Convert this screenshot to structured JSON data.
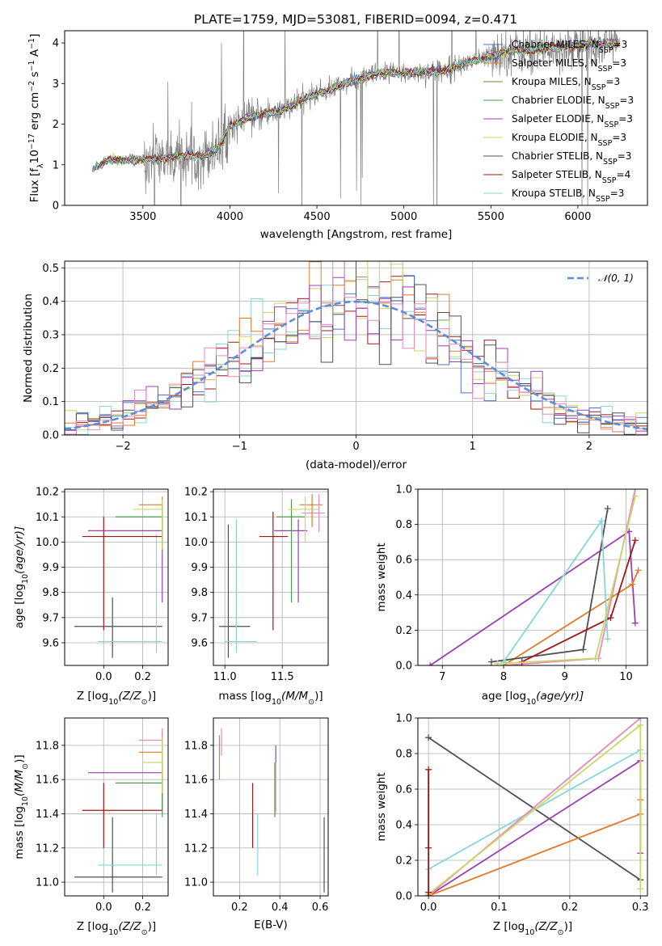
{
  "figure_title": "PLATE=1759, MJD=53081, FIBERID=0094, z=0.471",
  "colors": {
    "chabrier_miles": "#4c72d0",
    "salpeter_miles": "#e07b2e",
    "kroupa_miles": "#9a7a24",
    "chabrier_elodie": "#4f9a4f",
    "salpeter_elodie": "#9c3fb5",
    "kroupa_elodie": "#c9d66a",
    "chabrier_stelib": "#505050",
    "salpeter_stelib": "#a01818",
    "kroupa_stelib": "#86d6d9",
    "pink": "#e58ab8",
    "lime": "#b7d94f",
    "gauss": "#5b8ed6",
    "grid": "#b0b0b0",
    "data_gray": "#808080"
  },
  "chart_data": [
    {
      "id": "spectrum",
      "type": "line",
      "title": "PLATE=1759, MJD=53081, FIBERID=0094, z=0.471",
      "xlabel": "wavelength [Angstrom, rest frame]",
      "ylabel_parts": [
        "Flux [f",
        "λ",
        "10",
        "−17",
        " erg cm",
        "−2",
        " s",
        "−1",
        " A",
        "−1",
        "]"
      ],
      "xlim": [
        3050,
        6400
      ],
      "ylim": [
        0,
        4.3
      ],
      "xticks": [
        3500,
        4000,
        4500,
        5000,
        5500,
        6000
      ],
      "yticks": [
        0,
        1,
        2,
        3,
        4
      ],
      "grid": false,
      "legend_position": "right",
      "legend": [
        {
          "label": "Chabrier MILES, N",
          "sub": "SSP",
          "tail": "=3",
          "key": "chabrier_miles"
        },
        {
          "label": "Salpeter MILES, N",
          "sub": "SSP",
          "tail": "=3",
          "key": "salpeter_miles"
        },
        {
          "label": "Kroupa MILES, N",
          "sub": "SSP",
          "tail": "=3",
          "key": "kroupa_miles"
        },
        {
          "label": "Chabrier ELODIE, N",
          "sub": "SSP",
          "tail": "=3",
          "key": "chabrier_elodie"
        },
        {
          "label": "Salpeter ELODIE, N",
          "sub": "SSP",
          "tail": "=3",
          "key": "salpeter_elodie"
        },
        {
          "label": "Kroupa ELODIE, N",
          "sub": "SSP",
          "tail": "=3",
          "key": "kroupa_elodie"
        },
        {
          "label": "Chabrier STELIB, N",
          "sub": "SSP",
          "tail": "=3",
          "key": "chabrier_stelib"
        },
        {
          "label": "Salpeter STELIB, N",
          "sub": "SSP",
          "tail": "=4",
          "key": "salpeter_stelib"
        },
        {
          "label": "Kroupa STELIB, N",
          "sub": "SSP",
          "tail": "=3",
          "key": "kroupa_stelib"
        }
      ],
      "continuum_knots": [
        [
          3210,
          0.88
        ],
        [
          3300,
          1.12
        ],
        [
          3500,
          1.12
        ],
        [
          3700,
          1.2
        ],
        [
          3850,
          1.22
        ],
        [
          3950,
          1.5
        ],
        [
          4000,
          1.95
        ],
        [
          4100,
          2.15
        ],
        [
          4300,
          2.35
        ],
        [
          4500,
          2.75
        ],
        [
          4700,
          3.05
        ],
        [
          4850,
          3.25
        ],
        [
          5000,
          3.25
        ],
        [
          5200,
          3.3
        ],
        [
          5400,
          3.55
        ],
        [
          5600,
          3.8
        ],
        [
          5800,
          3.85
        ],
        [
          6000,
          3.95
        ],
        [
          6250,
          4.0
        ]
      ]
    },
    {
      "id": "residuals",
      "type": "histogram",
      "xlabel": "(data-model)/error",
      "ylabel": "Normed distribution",
      "xlim": [
        -2.5,
        2.5
      ],
      "ylim": [
        0,
        0.52
      ],
      "xticks": [
        -2,
        -1,
        0,
        1,
        2
      ],
      "yticks": [
        0.0,
        0.1,
        0.2,
        0.3,
        0.4,
        0.5
      ],
      "grid": true,
      "legend_position": "top-right",
      "legend": [
        {
          "label": "𝒩(0, 1)",
          "key": "gauss"
        }
      ],
      "bin_width": 0.1,
      "hist_keys": [
        "salpeter_stelib",
        "chabrier_miles",
        "kroupa_stelib",
        "salpeter_miles",
        "kroupa_elodie",
        "salpeter_elodie",
        "chabrier_stelib",
        "pink"
      ]
    },
    {
      "id": "age_vs_Z",
      "type": "errorbar",
      "xlabel_parts": [
        "Z [log",
        "10",
        "(Z/Z",
        "⊙",
        ")]"
      ],
      "ylabel_parts": [
        "age  [log",
        "10",
        "(age/yr)]"
      ],
      "xlim": [
        -0.2,
        0.33
      ],
      "ylim": [
        9.51,
        10.21
      ],
      "xticks": [
        0.0,
        0.2
      ],
      "yticks": [
        9.6,
        9.7,
        9.8,
        9.9,
        10.0,
        10.1,
        10.2
      ],
      "grid": true,
      "crosses": [
        {
          "key": "chabrier_stelib",
          "x": [
            -0.15,
            0.3
          ],
          "y": 9.665,
          "xc": 0.045,
          "yr": [
            9.54,
            9.78
          ]
        },
        {
          "key": "kroupa_stelib",
          "x": [
            -0.03,
            0.3
          ],
          "y": 9.605,
          "xc": 0.27,
          "yr": [
            9.56,
            10.03
          ]
        },
        {
          "key": "salpeter_stelib",
          "x": [
            -0.11,
            0.3
          ],
          "y": 10.022,
          "xc": 0.0,
          "yr": [
            9.65,
            10.1
          ]
        },
        {
          "key": "salpeter_elodie",
          "x": [
            -0.08,
            0.3
          ],
          "y": 10.045,
          "xc": 0.3,
          "yr": [
            9.76,
            10.09
          ]
        },
        {
          "key": "chabrier_elodie",
          "x": [
            0.06,
            0.3
          ],
          "y": 10.1,
          "xc": 0.3,
          "yr": [
            9.96,
            10.15
          ]
        },
        {
          "key": "salpeter_miles",
          "x": [
            0.18,
            0.3
          ],
          "y": 10.148,
          "xc": 0.3,
          "yr": [
            10.08,
            10.18
          ]
        },
        {
          "key": "kroupa_elodie",
          "x": [
            0.15,
            0.3
          ],
          "y": 10.13,
          "xc": 0.3,
          "yr": [
            9.97,
            10.17
          ]
        }
      ]
    },
    {
      "id": "age_vs_mass",
      "type": "errorbar",
      "xlabel_parts": [
        "mass [log",
        "10",
        "(M/M",
        "⊙",
        ")]"
      ],
      "xlim": [
        10.9,
        11.9
      ],
      "ylim": [
        9.51,
        10.21
      ],
      "xticks": [
        11.0,
        11.5
      ],
      "yticks": [
        9.6,
        9.7,
        9.8,
        9.9,
        10.0,
        10.1,
        10.2
      ],
      "grid": true,
      "crosses": [
        {
          "key": "chabrier_stelib",
          "x": [
            10.95,
            11.22
          ],
          "y": 9.665,
          "xc": 11.03,
          "yr": [
            9.54,
            10.07
          ]
        },
        {
          "key": "kroupa_stelib",
          "x": [
            11.0,
            11.28
          ],
          "y": 9.605,
          "xc": 11.1,
          "yr": [
            9.56,
            10.09
          ]
        },
        {
          "key": "salpeter_stelib",
          "x": [
            11.3,
            11.55
          ],
          "y": 10.022,
          "xc": 11.42,
          "yr": [
            9.65,
            10.12
          ]
        },
        {
          "key": "salpeter_elodie",
          "x": [
            11.43,
            11.72
          ],
          "y": 10.045,
          "xc": 11.64,
          "yr": [
            9.76,
            10.09
          ]
        },
        {
          "key": "chabrier_elodie",
          "x": [
            11.45,
            11.7
          ],
          "y": 10.1,
          "xc": 11.58,
          "yr": [
            9.76,
            10.17
          ]
        },
        {
          "key": "salpeter_miles",
          "x": [
            11.65,
            11.85
          ],
          "y": 10.148,
          "xc": 11.76,
          "yr": [
            10.06,
            10.19
          ]
        },
        {
          "key": "kroupa_elodie",
          "x": [
            11.55,
            11.82
          ],
          "y": 10.13,
          "xc": 11.7,
          "yr": [
            10.0,
            10.18
          ]
        },
        {
          "key": "pink",
          "x": [
            11.67,
            11.87
          ],
          "y": 10.115,
          "xc": 11.82,
          "yr": [
            10.04,
            10.19
          ]
        }
      ]
    },
    {
      "id": "weight_vs_age",
      "type": "line",
      "xlabel_parts": [
        "age  [log",
        "10",
        "(age/yr)]"
      ],
      "ylabel": "mass weight",
      "xlim": [
        6.6,
        10.35
      ],
      "ylim": [
        0,
        1.0
      ],
      "xticks": [
        7,
        8,
        9,
        10
      ],
      "yticks": [
        0.0,
        0.2,
        0.4,
        0.6,
        0.8,
        1.0
      ],
      "grid": true,
      "series": [
        {
          "key": "salpeter_elodie",
          "x": [
            6.8,
            10.05,
            10.15
          ],
          "y": [
            0.0,
            0.76,
            0.24
          ]
        },
        {
          "key": "pink",
          "x": [
            8.0,
            9.55,
            10.15
          ],
          "y": [
            0.0,
            0.04,
            1.0
          ]
        },
        {
          "key": "salpeter_miles",
          "x": [
            8.0,
            10.1,
            10.2
          ],
          "y": [
            0.0,
            0.46,
            0.54
          ]
        },
        {
          "key": "chabrier_stelib",
          "x": [
            7.8,
            9.3,
            9.7
          ],
          "y": [
            0.02,
            0.09,
            0.89
          ]
        },
        {
          "key": "salpeter_stelib",
          "x": [
            8.3,
            9.75,
            10.15
          ],
          "y": [
            0.02,
            0.27,
            0.71
          ]
        },
        {
          "key": "kroupa_stelib",
          "x": [
            8.0,
            9.6,
            9.7
          ],
          "y": [
            0.02,
            0.82,
            0.15
          ]
        },
        {
          "key": "kroupa_elodie",
          "x": [
            7.9,
            9.5,
            10.15
          ],
          "y": [
            0.01,
            0.04,
            0.96
          ]
        }
      ]
    },
    {
      "id": "mass_vs_Z",
      "type": "errorbar",
      "xlabel_parts": [
        "Z [log",
        "10",
        "(Z/Z",
        "⊙",
        ")]"
      ],
      "ylabel_parts": [
        "mass [log",
        "10",
        "(M/M",
        "⊙",
        ")]"
      ],
      "xlim": [
        -0.2,
        0.33
      ],
      "ylim": [
        10.92,
        11.96
      ],
      "xticks": [
        0.0,
        0.2
      ],
      "yticks": [
        11.0,
        11.2,
        11.4,
        11.6,
        11.8
      ],
      "grid": true,
      "crosses": [
        {
          "key": "chabrier_stelib",
          "x": [
            -0.15,
            0.3
          ],
          "y": 11.03,
          "xc": 0.045,
          "yr": [
            10.94,
            11.38
          ]
        },
        {
          "key": "kroupa_stelib",
          "x": [
            -0.03,
            0.3
          ],
          "y": 11.1,
          "xc": 0.27,
          "yr": [
            11.04,
            11.4
          ]
        },
        {
          "key": "salpeter_stelib",
          "x": [
            -0.11,
            0.3
          ],
          "y": 11.42,
          "xc": 0.0,
          "yr": [
            11.2,
            11.58
          ]
        },
        {
          "key": "salpeter_elodie",
          "x": [
            -0.08,
            0.3
          ],
          "y": 11.64,
          "xc": 0.3,
          "yr": [
            11.42,
            11.8
          ]
        },
        {
          "key": "chabrier_elodie",
          "x": [
            0.06,
            0.3
          ],
          "y": 11.58,
          "xc": 0.3,
          "yr": [
            11.38,
            11.7
          ]
        },
        {
          "key": "salpeter_miles",
          "x": [
            0.18,
            0.3
          ],
          "y": 11.76,
          "xc": 0.3,
          "yr": [
            11.62,
            11.88
          ]
        },
        {
          "key": "pink",
          "x": [
            0.18,
            0.3
          ],
          "y": 11.83,
          "xc": 0.3,
          "yr": [
            11.74,
            11.9
          ]
        },
        {
          "key": "kroupa_elodie",
          "x": [
            0.2,
            0.3
          ],
          "y": 11.7,
          "xc": 0.3,
          "yr": [
            11.52,
            11.85
          ]
        }
      ]
    },
    {
      "id": "mass_vs_ebv",
      "type": "errorbar",
      "xlabel": "E(B-V)",
      "xlim": [
        0.07,
        0.64
      ],
      "ylim": [
        10.92,
        11.96
      ],
      "xticks": [
        0.2,
        0.4,
        0.6
      ],
      "yticks": [
        11.0,
        11.2,
        11.4,
        11.6,
        11.8
      ],
      "grid": true,
      "crosses": [
        {
          "key": "chabrier_stelib",
          "xc": 0.62,
          "yr": [
            10.94,
            11.38
          ]
        },
        {
          "key": "kroupa_stelib",
          "xc": 0.29,
          "yr": [
            11.04,
            11.4
          ]
        },
        {
          "key": "salpeter_stelib",
          "xc": 0.265,
          "yr": [
            11.2,
            11.58
          ]
        },
        {
          "key": "salpeter_elodie",
          "xc": 0.38,
          "yr": [
            11.42,
            11.8
          ]
        },
        {
          "key": "chabrier_elodie",
          "xc": 0.375,
          "yr": [
            11.38,
            11.7
          ]
        },
        {
          "key": "kroupa_elodie",
          "xc": 0.38,
          "yr": [
            11.4,
            11.7
          ]
        },
        {
          "key": "salpeter_miles",
          "xc": 0.1,
          "yr": [
            11.6,
            11.86
          ]
        },
        {
          "key": "pink",
          "xc": 0.11,
          "yr": [
            11.74,
            11.9
          ]
        }
      ]
    },
    {
      "id": "weight_vs_Z",
      "type": "line",
      "xlabel_parts": [
        "Z [log",
        "10",
        "(Z/Z",
        "⊙",
        ")]"
      ],
      "ylabel": "mass weight",
      "xlim": [
        -0.015,
        0.31
      ],
      "ylim": [
        0,
        1.0
      ],
      "xticks": [
        0.0,
        0.1,
        0.2,
        0.3
      ],
      "yticks": [
        0.0,
        0.2,
        0.4,
        0.6,
        0.8,
        1.0
      ],
      "grid": true,
      "series": [
        {
          "key": "chabrier_stelib",
          "x": [
            0.0,
            0.3
          ],
          "y": [
            0.89,
            0.09
          ]
        },
        {
          "key": "kroupa_stelib",
          "x": [
            0.0,
            0.0,
            0.3
          ],
          "y": [
            0.0,
            0.15,
            0.82
          ]
        },
        {
          "key": "salpeter_elodie",
          "x": [
            0.0,
            0.3,
            0.3
          ],
          "y": [
            0.0,
            0.76,
            0.24
          ]
        },
        {
          "key": "pink",
          "x": [
            0.0,
            0.3
          ],
          "y": [
            0.0,
            1.0
          ]
        },
        {
          "key": "salpeter_miles",
          "x": [
            0.0,
            0.3,
            0.3
          ],
          "y": [
            0.0,
            0.46,
            0.54
          ]
        },
        {
          "key": "kroupa_elodie",
          "x": [
            0.0,
            0.3,
            0.3
          ],
          "y": [
            0.01,
            0.96,
            0.04
          ]
        },
        {
          "key": "salpeter_stelib",
          "x": [
            0.0,
            0.0,
            0.0,
            0.0
          ],
          "y": [
            0.0,
            0.02,
            0.27,
            0.71
          ]
        }
      ]
    }
  ]
}
